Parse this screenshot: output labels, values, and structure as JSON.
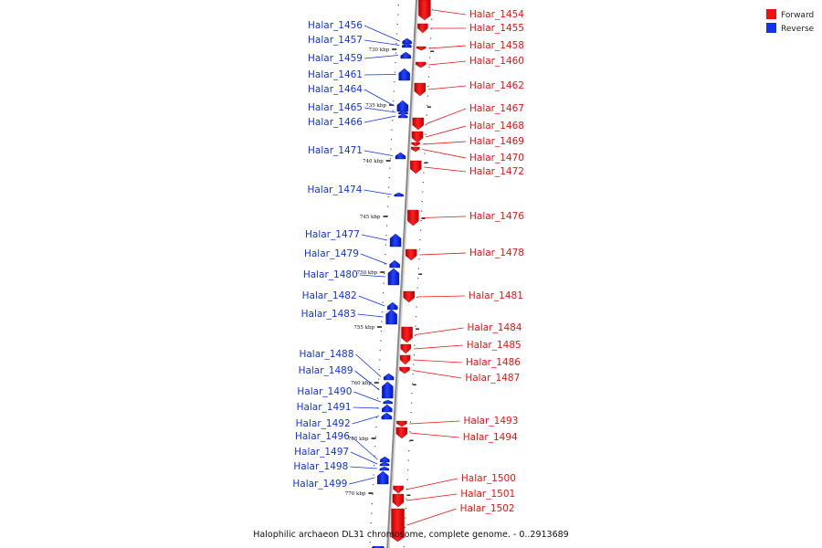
{
  "legend": {
    "forward": {
      "label": "Forward",
      "color": "#ee1111"
    },
    "reverse": {
      "label": "Reverse",
      "color": "#1133ee"
    }
  },
  "caption": "Halophilic archaeon DL31 chromosome, complete genome. - 0..2913689",
  "ticks": [
    "730 kbp",
    "735 kbp",
    "740 kbp",
    "745 kbp",
    "750 kbp",
    "755 kbp",
    "760 kbp",
    "765 kbp",
    "770 kbp"
  ],
  "genes": [
    {
      "id": "Halar_1454",
      "strand": "forward"
    },
    {
      "id": "Halar_1455",
      "strand": "forward"
    },
    {
      "id": "Halar_1456",
      "strand": "reverse"
    },
    {
      "id": "Halar_1457",
      "strand": "reverse"
    },
    {
      "id": "Halar_1458",
      "strand": "forward"
    },
    {
      "id": "Halar_1459",
      "strand": "reverse"
    },
    {
      "id": "Halar_1460",
      "strand": "forward"
    },
    {
      "id": "Halar_1461",
      "strand": "reverse"
    },
    {
      "id": "Halar_1462",
      "strand": "forward"
    },
    {
      "id": "Halar_1464",
      "strand": "reverse"
    },
    {
      "id": "Halar_1465",
      "strand": "reverse"
    },
    {
      "id": "Halar_1466",
      "strand": "reverse"
    },
    {
      "id": "Halar_1467",
      "strand": "forward"
    },
    {
      "id": "Halar_1468",
      "strand": "forward"
    },
    {
      "id": "Halar_1469",
      "strand": "forward"
    },
    {
      "id": "Halar_1470",
      "strand": "forward"
    },
    {
      "id": "Halar_1471",
      "strand": "reverse"
    },
    {
      "id": "Halar_1472",
      "strand": "forward"
    },
    {
      "id": "Halar_1474",
      "strand": "reverse"
    },
    {
      "id": "Halar_1476",
      "strand": "forward"
    },
    {
      "id": "Halar_1477",
      "strand": "reverse"
    },
    {
      "id": "Halar_1478",
      "strand": "forward"
    },
    {
      "id": "Halar_1479",
      "strand": "reverse"
    },
    {
      "id": "Halar_1480",
      "strand": "reverse"
    },
    {
      "id": "Halar_1481",
      "strand": "forward"
    },
    {
      "id": "Halar_1482",
      "strand": "reverse"
    },
    {
      "id": "Halar_1483",
      "strand": "reverse"
    },
    {
      "id": "Halar_1484",
      "strand": "forward"
    },
    {
      "id": "Halar_1485",
      "strand": "forward"
    },
    {
      "id": "Halar_1486",
      "strand": "forward"
    },
    {
      "id": "Halar_1487",
      "strand": "forward"
    },
    {
      "id": "Halar_1488",
      "strand": "reverse"
    },
    {
      "id": "Halar_1489",
      "strand": "reverse"
    },
    {
      "id": "Halar_1490",
      "strand": "reverse"
    },
    {
      "id": "Halar_1491",
      "strand": "reverse"
    },
    {
      "id": "Halar_1492",
      "strand": "reverse"
    },
    {
      "id": "Halar_1493",
      "strand": "forward"
    },
    {
      "id": "Halar_1494",
      "strand": "forward"
    },
    {
      "id": "Halar_1496",
      "strand": "reverse"
    },
    {
      "id": "Halar_1497",
      "strand": "reverse"
    },
    {
      "id": "Halar_1498",
      "strand": "reverse"
    },
    {
      "id": "Halar_1499",
      "strand": "reverse"
    },
    {
      "id": "Halar_1500",
      "strand": "forward"
    },
    {
      "id": "Halar_1501",
      "strand": "forward"
    },
    {
      "id": "Halar_1502",
      "strand": "forward"
    }
  ]
}
